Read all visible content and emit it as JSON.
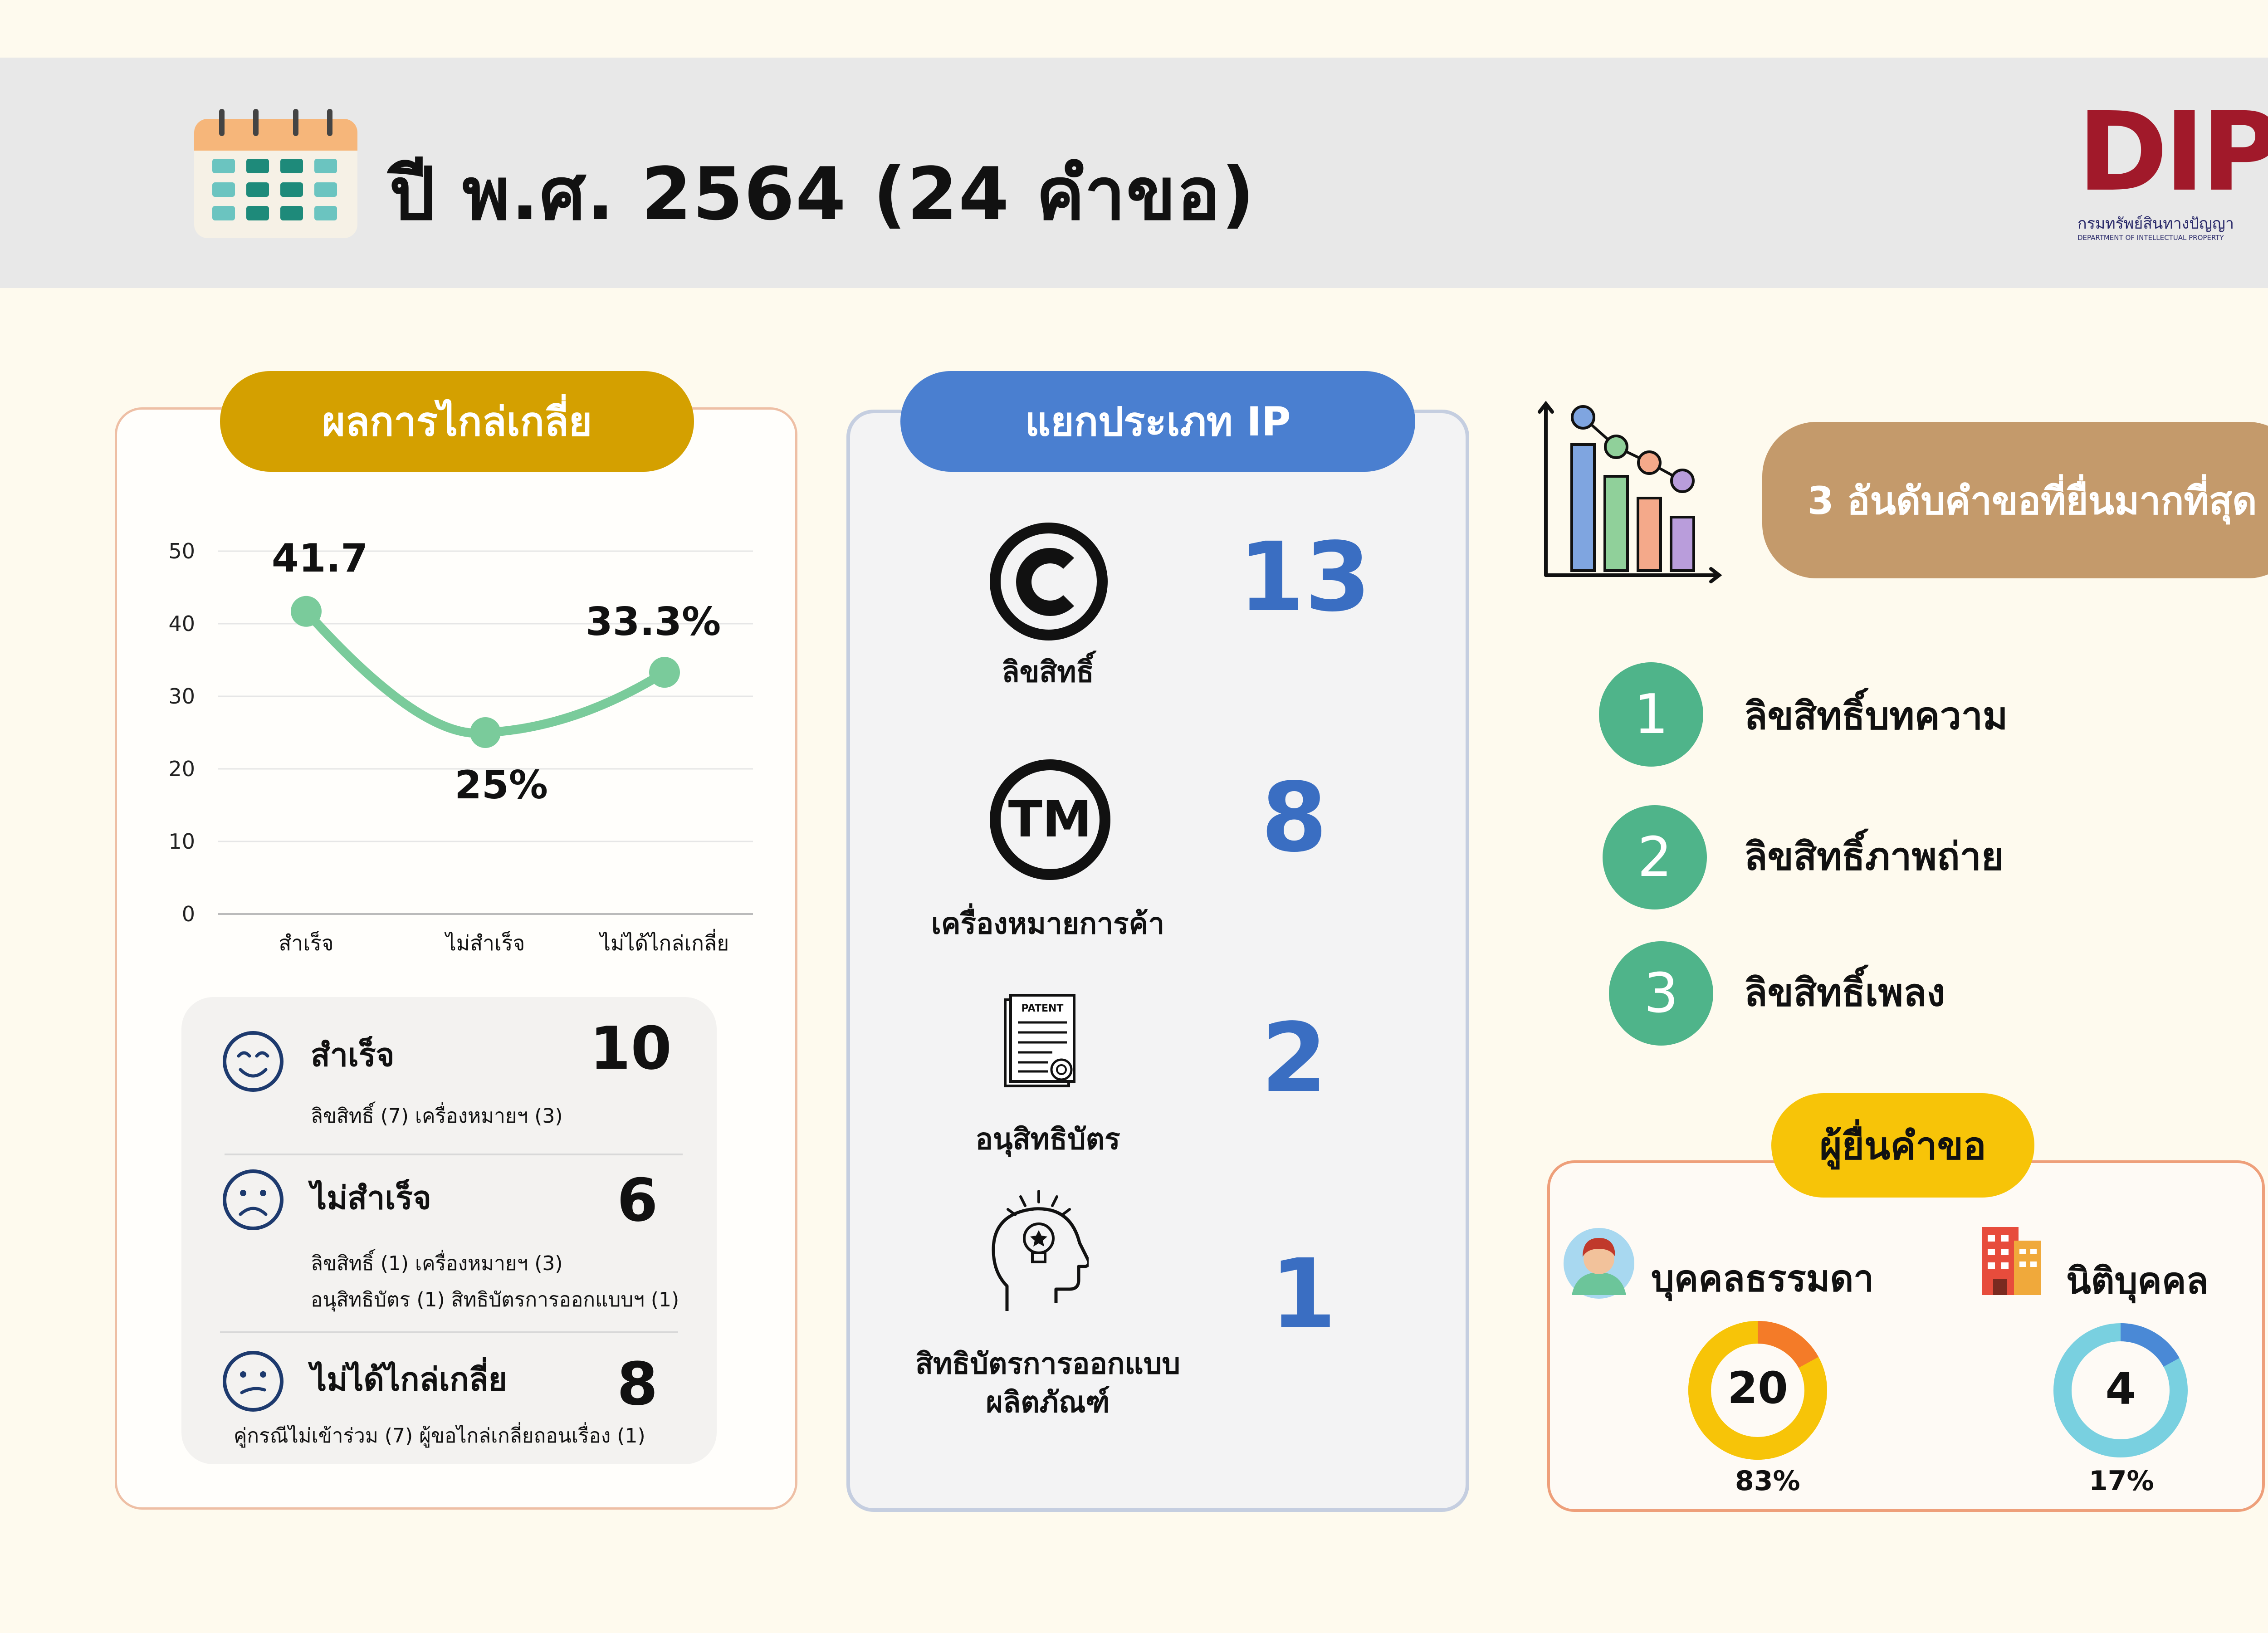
{
  "header": {
    "title": "ปี พ.ศ. 2564  (24 คำขอ)",
    "icon": "calendar-icon",
    "logo_text": "DIP",
    "logo_sub_th": "กรมทรัพย์สินทางปัญญา",
    "logo_sub_en": "DEPARTMENT OF INTELLECTUAL PROPERTY"
  },
  "mediation": {
    "pill_label": "ผลการไกล่เกลี่ย",
    "rows": [
      {
        "icon": "happy-face-icon",
        "label": "สำเร็จ",
        "count": "10",
        "detail1": "ลิขสิทธิ์ (7) เครื่องหมายฯ (3)",
        "detail2": ""
      },
      {
        "icon": "sad-face-icon",
        "label": "ไม่สำเร็จ",
        "count": "6",
        "detail1": "ลิขสิทธิ์ (1) เครื่องหมายฯ (3)",
        "detail2": "อนุสิทธิบัตร (1) สิทธิบัตรการออกแบบฯ (1)"
      },
      {
        "icon": "neutral-face-icon",
        "label": "ไม่ได้ไกล่เกลี่ย",
        "count": "8",
        "detail1": "คู่กรณีไม่เข้าร่วม (7) ผู้ขอไกล่เกลี่ยถอนเรื่อง (1)",
        "detail2": ""
      }
    ]
  },
  "chart_data": {
    "type": "line",
    "categories": [
      "สำเร็จ",
      "ไม่สำเร็จ",
      "ไม่ได้ไกล่เกลี่ย"
    ],
    "values": [
      41.7,
      25,
      33.3
    ],
    "data_labels": [
      "41.7",
      "25%",
      "33.3%"
    ],
    "yticks": [
      "0",
      "10",
      "20",
      "30",
      "40",
      "50"
    ],
    "ylim": [
      0,
      50
    ],
    "grid": true,
    "color": "#7acb9b"
  },
  "ip_types": {
    "pill_label": "แยกประเภท IP",
    "items": [
      {
        "icon": "copyright-icon",
        "label": "ลิขสิทธิ์",
        "count": "13"
      },
      {
        "icon": "trademark-icon",
        "label": "เครื่องหมายการค้า",
        "count": "8"
      },
      {
        "icon": "patent-document-icon",
        "label": "อนุสิทธิบัตร",
        "count": "2",
        "patent_text": "PATENT"
      },
      {
        "icon": "idea-head-icon",
        "label": "สิทธิบัตรการออกแบบ",
        "label2": "ผลิตภัณฑ์",
        "count": "1"
      }
    ]
  },
  "top3": {
    "icon": "bar-chart-icon",
    "pill_label": "3 อันดับคำขอที่ยื่นมากที่สุด",
    "items": [
      {
        "rank": "1",
        "label": "ลิขสิทธิ์บทความ"
      },
      {
        "rank": "2",
        "label": "ลิขสิทธิ์ภาพถ่าย"
      },
      {
        "rank": "3",
        "label": "ลิขสิทธิ์เพลง"
      }
    ]
  },
  "applicants": {
    "pill_label": "ผู้ยื่นคำขอ",
    "natural": {
      "icon": "person-icon",
      "label": "บุคคลธรรมดา",
      "count": "20",
      "percent": "83%",
      "fraction": 0.83
    },
    "juristic": {
      "icon": "building-icon",
      "label": "นิติบุคคล",
      "count": "4",
      "percent": "17%",
      "fraction": 0.17
    }
  },
  "colors": {
    "gold": "#d4a000",
    "blue": "#4a7fd0",
    "tan": "#c49a6b",
    "yellow": "#f7c408",
    "green": "#4fb48a",
    "count_blue": "#3a6ec2"
  }
}
